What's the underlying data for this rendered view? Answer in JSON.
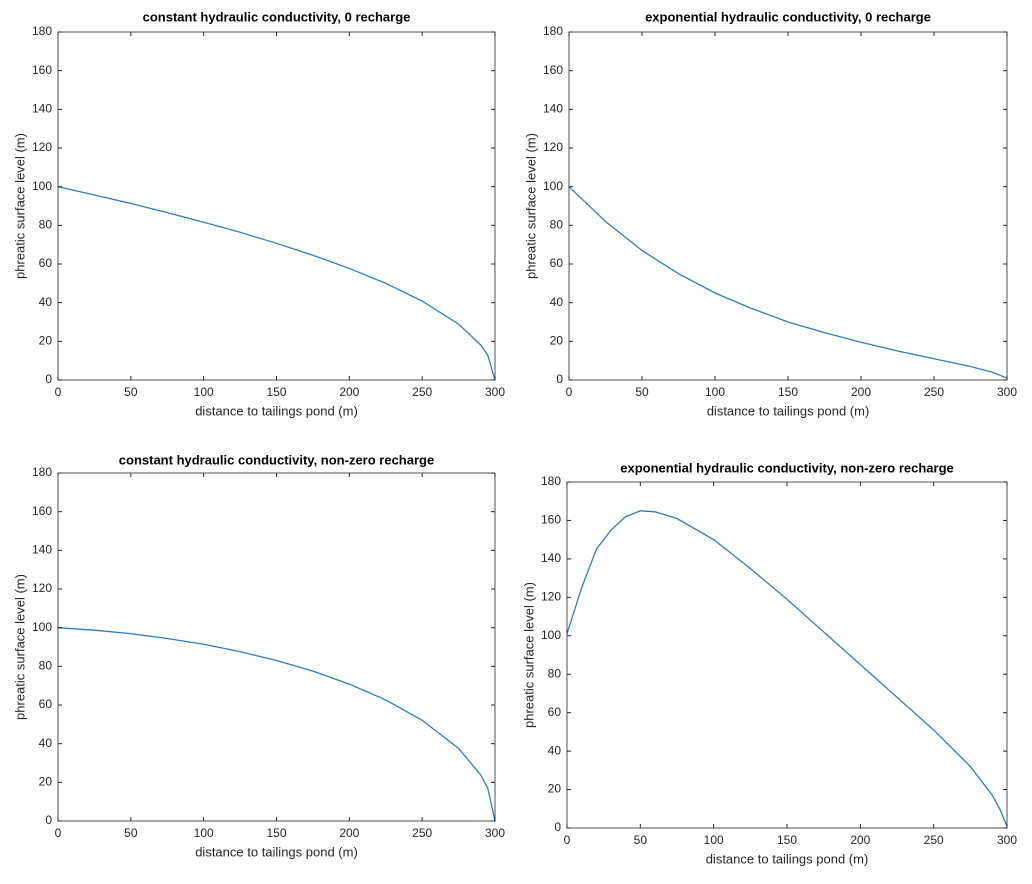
{
  "chart_data": [
    {
      "type": "line",
      "title": "constant hydraulic conductivity, 0 recharge",
      "x_label": "distance to tailings pond (m)",
      "y_label": "phreatic surface level (m)",
      "x": [
        0,
        25,
        50,
        75,
        100,
        125,
        150,
        175,
        200,
        225,
        250,
        275,
        290,
        295,
        300
      ],
      "values": [
        100,
        95.7,
        91.3,
        86.6,
        81.6,
        76.4,
        70.7,
        64.5,
        57.7,
        50,
        40.8,
        28.9,
        18.3,
        12.9,
        0
      ],
      "color": "#2b7fc4",
      "xlim": [
        0,
        300
      ],
      "ylim": [
        0,
        180
      ],
      "xticks": [
        0,
        50,
        100,
        150,
        200,
        250,
        300
      ],
      "yticks": [
        0,
        20,
        40,
        60,
        80,
        100,
        120,
        140,
        160,
        180
      ]
    },
    {
      "type": "line",
      "title": "exponential hydraulic conductivity, 0 recharge",
      "x_label": "distance to tailings pond (m)",
      "y_label": "phreatic surface level (m)",
      "x": [
        0,
        25,
        50,
        75,
        100,
        125,
        150,
        175,
        200,
        225,
        250,
        275,
        290,
        300
      ],
      "values": [
        100,
        82,
        67,
        55,
        45,
        37,
        30,
        24.5,
        19.5,
        15,
        11,
        7,
        4,
        1
      ],
      "color": "#2b7fc4",
      "xlim": [
        0,
        300
      ],
      "ylim": [
        0,
        180
      ],
      "xticks": [
        0,
        50,
        100,
        150,
        200,
        250,
        300
      ],
      "yticks": [
        0,
        20,
        40,
        60,
        80,
        100,
        120,
        140,
        160,
        180
      ]
    },
    {
      "type": "line",
      "title": "constant hydraulic conductivity, non-zero recharge",
      "x_label": "distance to tailings pond (m)",
      "y_label": "phreatic surface level (m)",
      "x": [
        0,
        25,
        50,
        75,
        100,
        125,
        150,
        175,
        200,
        225,
        250,
        275,
        290,
        295,
        300
      ],
      "values": [
        100,
        98.7,
        96.9,
        94.4,
        91.4,
        87.6,
        83,
        77.5,
        70.8,
        62.6,
        52.1,
        37.6,
        24,
        17.1,
        0
      ],
      "color": "#2b7fc4",
      "xlim": [
        0,
        300
      ],
      "ylim": [
        0,
        180
      ],
      "xticks": [
        0,
        50,
        100,
        150,
        200,
        250,
        300
      ],
      "yticks": [
        0,
        20,
        40,
        60,
        80,
        100,
        120,
        140,
        160,
        180
      ]
    },
    {
      "type": "line",
      "title": "exponential hydraulic conductivity, non-zero recharge",
      "x_label": "distance to tailings pond (m)",
      "y_label": "phreatic surface level (m)",
      "x": [
        0,
        10,
        20,
        30,
        40,
        50,
        60,
        75,
        100,
        125,
        150,
        175,
        200,
        225,
        250,
        275,
        290,
        295,
        300
      ],
      "values": [
        101,
        125,
        145,
        155,
        162,
        165,
        164.5,
        161,
        150,
        135,
        119,
        102,
        85,
        68,
        51,
        32,
        17,
        10,
        1
      ],
      "color": "#2b7fc4",
      "xlim": [
        0,
        300
      ],
      "ylim": [
        0,
        180
      ],
      "xticks": [
        0,
        50,
        100,
        150,
        200,
        250,
        300
      ],
      "yticks": [
        0,
        20,
        40,
        60,
        80,
        100,
        120,
        140,
        160,
        180
      ]
    }
  ]
}
